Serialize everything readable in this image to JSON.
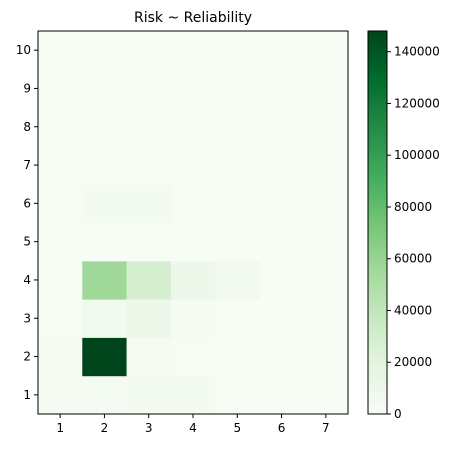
{
  "chart_data": {
    "type": "heatmap",
    "title": "Risk ~ Reliability",
    "xlabel": "",
    "ylabel": "",
    "x_categories": [
      "1",
      "2",
      "3",
      "4",
      "5",
      "6",
      "7"
    ],
    "y_categories": [
      "1",
      "2",
      "3",
      "4",
      "5",
      "6",
      "7",
      "8",
      "9",
      "10"
    ],
    "values": [
      [
        2000,
        3000,
        4000,
        4000,
        1000,
        0,
        0
      ],
      [
        2000,
        148000,
        2000,
        1000,
        0,
        0,
        0
      ],
      [
        1000,
        6000,
        10000,
        2000,
        0,
        0,
        0
      ],
      [
        1000,
        56000,
        27000,
        10000,
        5000,
        0,
        0
      ],
      [
        0,
        0,
        0,
        0,
        0,
        0,
        0
      ],
      [
        1000,
        4000,
        4000,
        1000,
        0,
        0,
        0
      ],
      [
        0,
        0,
        0,
        0,
        0,
        0,
        0
      ],
      [
        0,
        0,
        0,
        0,
        0,
        0,
        0
      ],
      [
        0,
        0,
        0,
        0,
        0,
        0,
        0
      ],
      [
        0,
        0,
        0,
        0,
        0,
        0,
        0
      ]
    ],
    "colorbar": {
      "min": 0,
      "max": 148000,
      "ticks": [
        "0",
        "20000",
        "40000",
        "60000",
        "80000",
        "100000",
        "120000",
        "140000"
      ],
      "tick_values": [
        0,
        20000,
        40000,
        60000,
        80000,
        100000,
        120000,
        140000
      ],
      "colormap": "Greens",
      "colors": [
        "#f7fcf5",
        "#e5f5e0",
        "#c7e9c0",
        "#a1d99b",
        "#74c476",
        "#41ab5d",
        "#238b45",
        "#006d2c",
        "#00441b"
      ]
    },
    "grid": false,
    "legend": "colorbar-right"
  }
}
